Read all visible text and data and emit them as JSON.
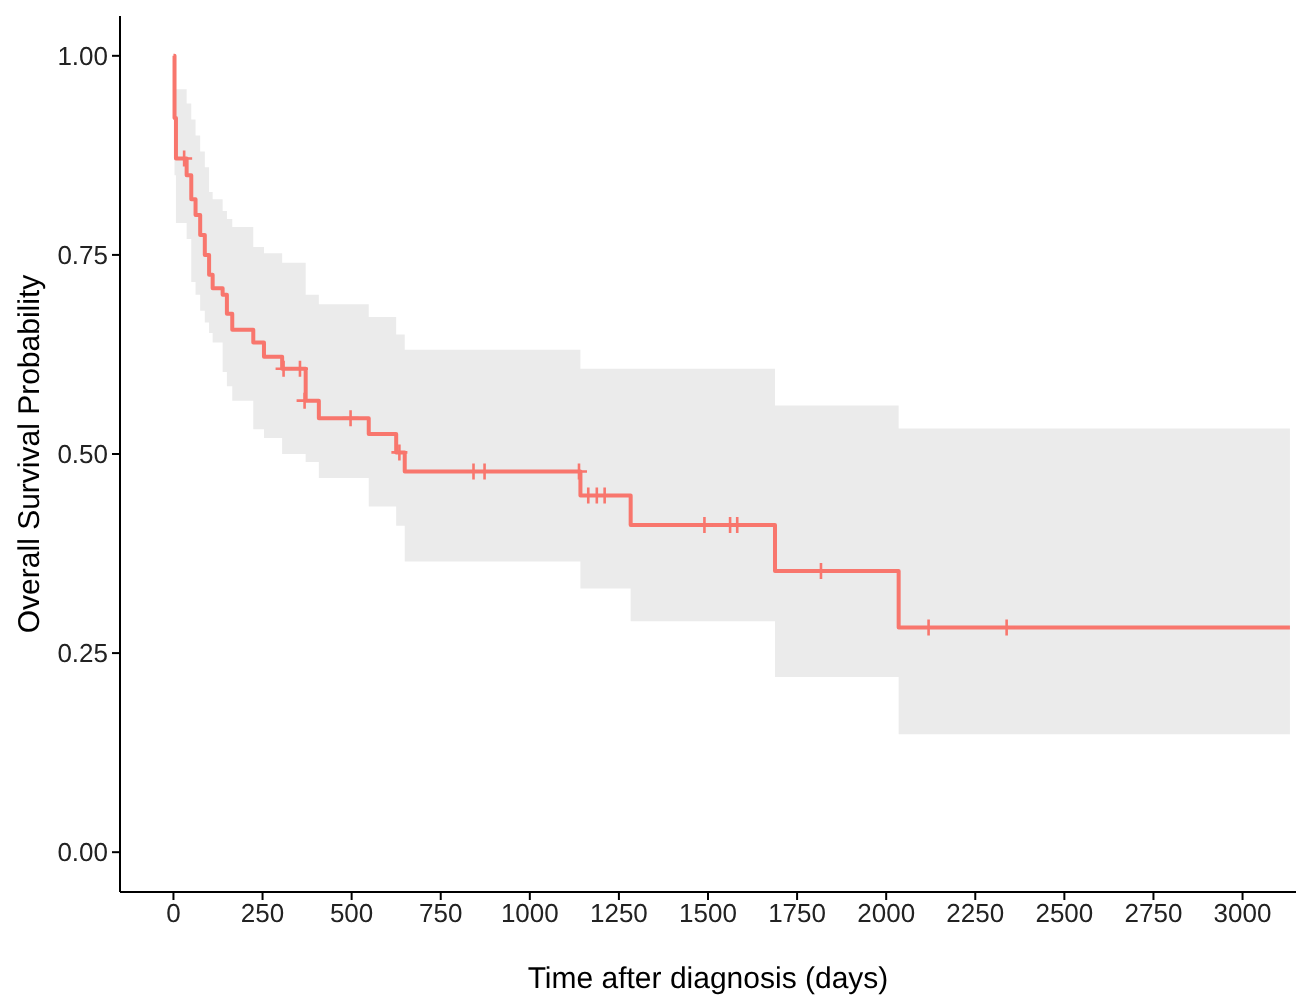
{
  "chart_data": {
    "type": "step",
    "xlabel": "Time after diagnosis (days)",
    "ylabel": "Overall Survival Probability",
    "xlim": [
      -150,
      3150
    ],
    "xticks": [
      0,
      250,
      500,
      750,
      1000,
      1250,
      1500,
      1750,
      2000,
      2250,
      2500,
      2750,
      3000
    ],
    "ylim": [
      -0.05,
      1.05
    ],
    "yticks": [
      {
        "value": 0,
        "label": "0.00"
      },
      {
        "value": 0.25,
        "label": "0.25"
      },
      {
        "value": 0.5,
        "label": "0.50"
      },
      {
        "value": 0.75,
        "label": "0.75"
      },
      {
        "value": 1,
        "label": "1.00"
      }
    ],
    "grid": false,
    "legend": false,
    "series": [
      {
        "type": "step",
        "color": "#f8766d",
        "marker": "none",
        "x": [
          0,
          3,
          7,
          37,
          50,
          62,
          75,
          88,
          100,
          110,
          138,
          150,
          165,
          224,
          254,
          305,
          371,
          408,
          548,
          625,
          649,
          1142,
          1283,
          1688,
          2035,
          3133
        ],
        "values": [
          1.0,
          0.922,
          0.871,
          0.85,
          0.82,
          0.8,
          0.775,
          0.75,
          0.725,
          0.708,
          0.7,
          0.676,
          0.656,
          0.64,
          0.622,
          0.607,
          0.567,
          0.545,
          0.525,
          0.502,
          0.478,
          0.448,
          0.411,
          0.353,
          0.282,
          0.282
        ],
        "lower": [
          1.0,
          0.85,
          0.79,
          0.77,
          0.716,
          0.7,
          0.68,
          0.665,
          0.652,
          0.64,
          0.603,
          0.585,
          0.567,
          0.531,
          0.52,
          0.5,
          0.49,
          0.47,
          0.434,
          0.41,
          0.365,
          0.331,
          0.29,
          0.22,
          0.148,
          0.148
        ],
        "upper": [
          1.0,
          0.96,
          0.958,
          0.94,
          0.92,
          0.9,
          0.88,
          0.86,
          0.829,
          0.82,
          0.805,
          0.795,
          0.785,
          0.76,
          0.752,
          0.74,
          0.7,
          0.688,
          0.672,
          0.65,
          0.631,
          0.607,
          0.607,
          0.561,
          0.532,
          0.532
        ]
      },
      {
        "type": "scatter",
        "color": "#f8766d",
        "marker": "cross",
        "x": [
          30,
          309,
          355,
          368,
          497,
          634,
          842,
          873,
          1138,
          1164,
          1188,
          1210,
          1490,
          1562,
          1582,
          1817,
          2119,
          2338
        ],
        "values": [
          0.871,
          0.607,
          0.607,
          0.567,
          0.545,
          0.502,
          0.478,
          0.478,
          0.478,
          0.448,
          0.448,
          0.448,
          0.411,
          0.411,
          0.411,
          0.353,
          0.282,
          0.282
        ]
      }
    ]
  }
}
